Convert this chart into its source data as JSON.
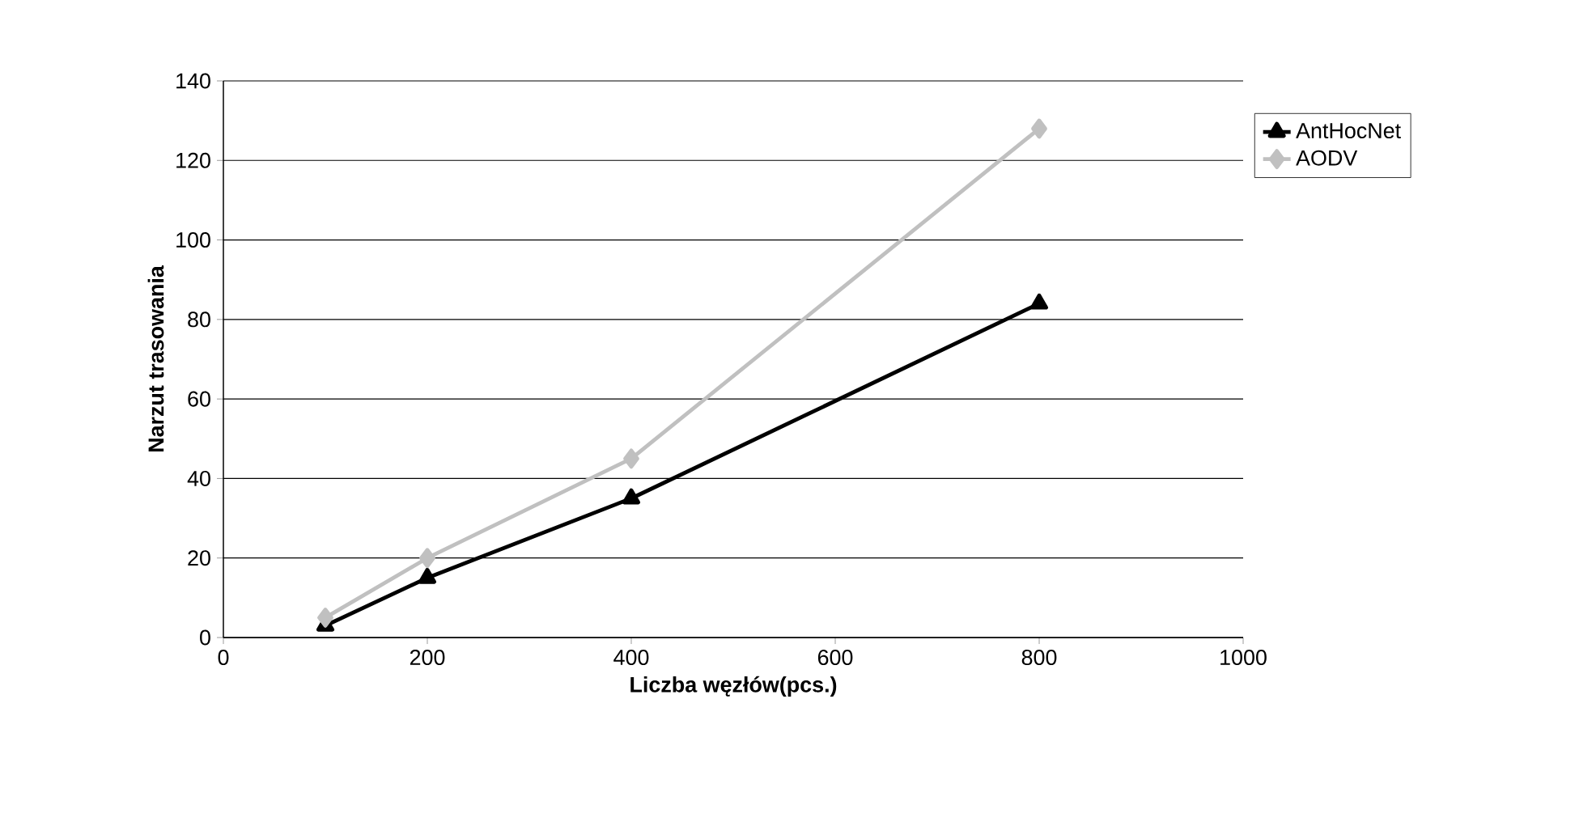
{
  "chart_data": {
    "type": "line",
    "xlabel": "Liczba węzłów(pcs.)",
    "ylabel": "Narzut trasowania",
    "x": [
      100,
      200,
      400,
      800
    ],
    "series": [
      {
        "name": "AntHocNet",
        "color": "#000000",
        "marker": "triangle",
        "values": [
          3,
          15,
          35,
          84
        ]
      },
      {
        "name": "AODV",
        "color": "#c0c0c0",
        "marker": "diamond",
        "values": [
          5,
          20,
          45,
          128
        ]
      }
    ],
    "xlim": [
      0,
      1000
    ],
    "xticks": [
      0,
      200,
      400,
      600,
      800,
      1000
    ],
    "ylim": [
      0,
      140
    ],
    "yticks": [
      0,
      20,
      40,
      60,
      80,
      100,
      120,
      140
    ],
    "grid": "y",
    "legend": "top right",
    "line_style": "solid"
  }
}
